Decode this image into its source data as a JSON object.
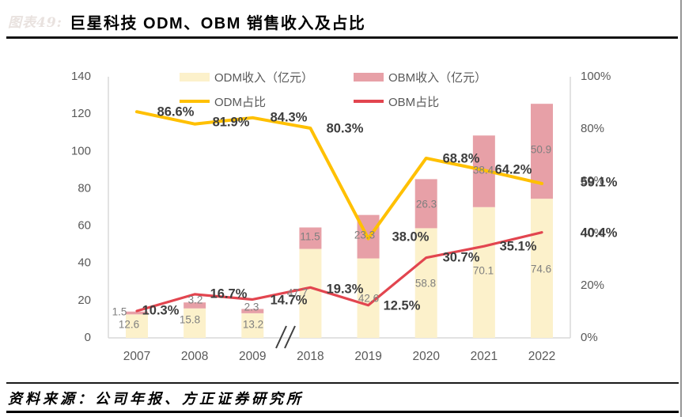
{
  "figure_label": "图表49:",
  "title": "巨星科技 ODM、OBM 销售收入及占比",
  "source": "资料来源：公司年报、方正证券研究所",
  "axes": {
    "left_ticks": [
      0,
      20,
      40,
      60,
      80,
      100,
      120,
      140
    ],
    "right_ticks": [
      0,
      20,
      40,
      60,
      80,
      100
    ],
    "right_suffix": "%"
  },
  "chart_data": {
    "type": "bar+line",
    "categories": [
      "2007",
      "2008",
      "2009",
      "2018",
      "2019",
      "2020",
      "2021",
      "2022"
    ],
    "axis_break_between": [
      "2009",
      "2018"
    ],
    "left_axis_range": [
      0,
      140
    ],
    "right_axis_range": [
      0,
      100
    ],
    "grid": false,
    "legend_position": "top",
    "series": [
      {
        "name": "ODM收入（亿元）",
        "type": "bar",
        "stacked": true,
        "color": "#FCF1CB",
        "values": [
          12.6,
          15.8,
          13.2,
          47.7,
          42.6,
          58.8,
          70.1,
          74.6
        ]
      },
      {
        "name": "OBM收入（亿元）",
        "type": "bar",
        "stacked": true,
        "color": "#E7A0A7",
        "values": [
          1.5,
          3.2,
          2.3,
          11.5,
          23.3,
          26.3,
          38.4,
          50.9
        ]
      },
      {
        "name": "ODM占比",
        "type": "line",
        "axis": "right",
        "color": "#FFC000",
        "values": [
          86.6,
          81.9,
          84.3,
          80.3,
          38.0,
          68.8,
          64.2,
          59.1
        ]
      },
      {
        "name": "OBM占比",
        "type": "line",
        "axis": "right",
        "color": "#E2454F",
        "values": [
          10.3,
          16.7,
          14.7,
          19.3,
          12.5,
          30.7,
          35.1,
          40.4
        ]
      }
    ],
    "label_colors": {
      "bar_value": "#7f7f7f",
      "pct_value": "#3d3d3d"
    },
    "axis_label_color": "#595959",
    "axis_line_color": "#d9d9d9"
  }
}
